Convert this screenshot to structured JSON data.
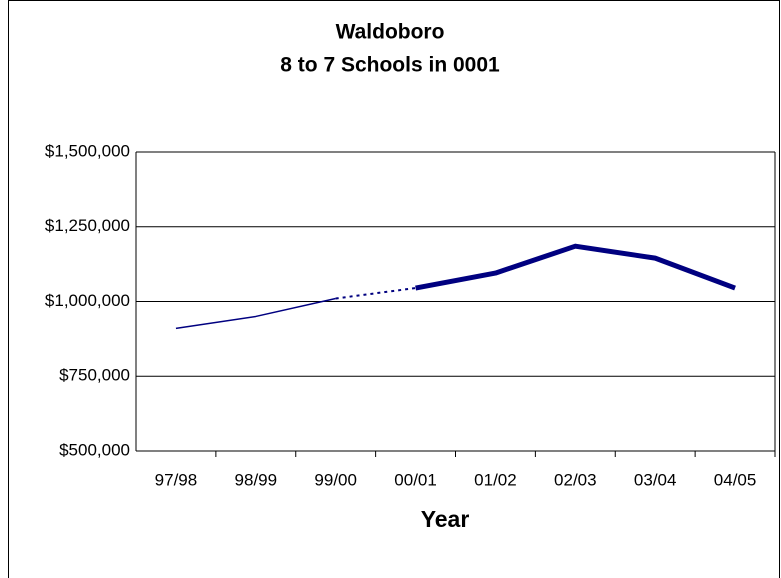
{
  "chart_data": {
    "type": "line",
    "title": "Waldoboro",
    "subtitle": "8 to 7 Schools in 0001",
    "x_label": "Year",
    "categories": [
      "97/98",
      "98/99",
      "99/00",
      "00/01",
      "01/02",
      "02/03",
      "03/04",
      "04/05"
    ],
    "series": [
      {
        "color": "#000080",
        "width": 1.5,
        "dash": false,
        "values": [
          910000,
          950000,
          1010000,
          null,
          null,
          null,
          null,
          null
        ]
      },
      {
        "color": "#000080",
        "width": 2,
        "dash": true,
        "values": [
          null,
          null,
          1010000,
          1045000,
          null,
          null,
          null,
          null
        ]
      },
      {
        "color": "#000080",
        "width": 5,
        "dash": false,
        "values": [
          null,
          null,
          null,
          1045000,
          1095000,
          1185000,
          1145000,
          1045000
        ]
      }
    ],
    "ylim": [
      500000,
      1500000
    ],
    "yticks": [
      {
        "value": 500000,
        "label": "$500,000"
      },
      {
        "value": 750000,
        "label": "$750,000"
      },
      {
        "value": 1000000,
        "label": "$1,000,000"
      },
      {
        "value": 1250000,
        "label": "$1,250,000"
      },
      {
        "value": 1500000,
        "label": "$1,500,000"
      }
    ],
    "grid": true
  }
}
